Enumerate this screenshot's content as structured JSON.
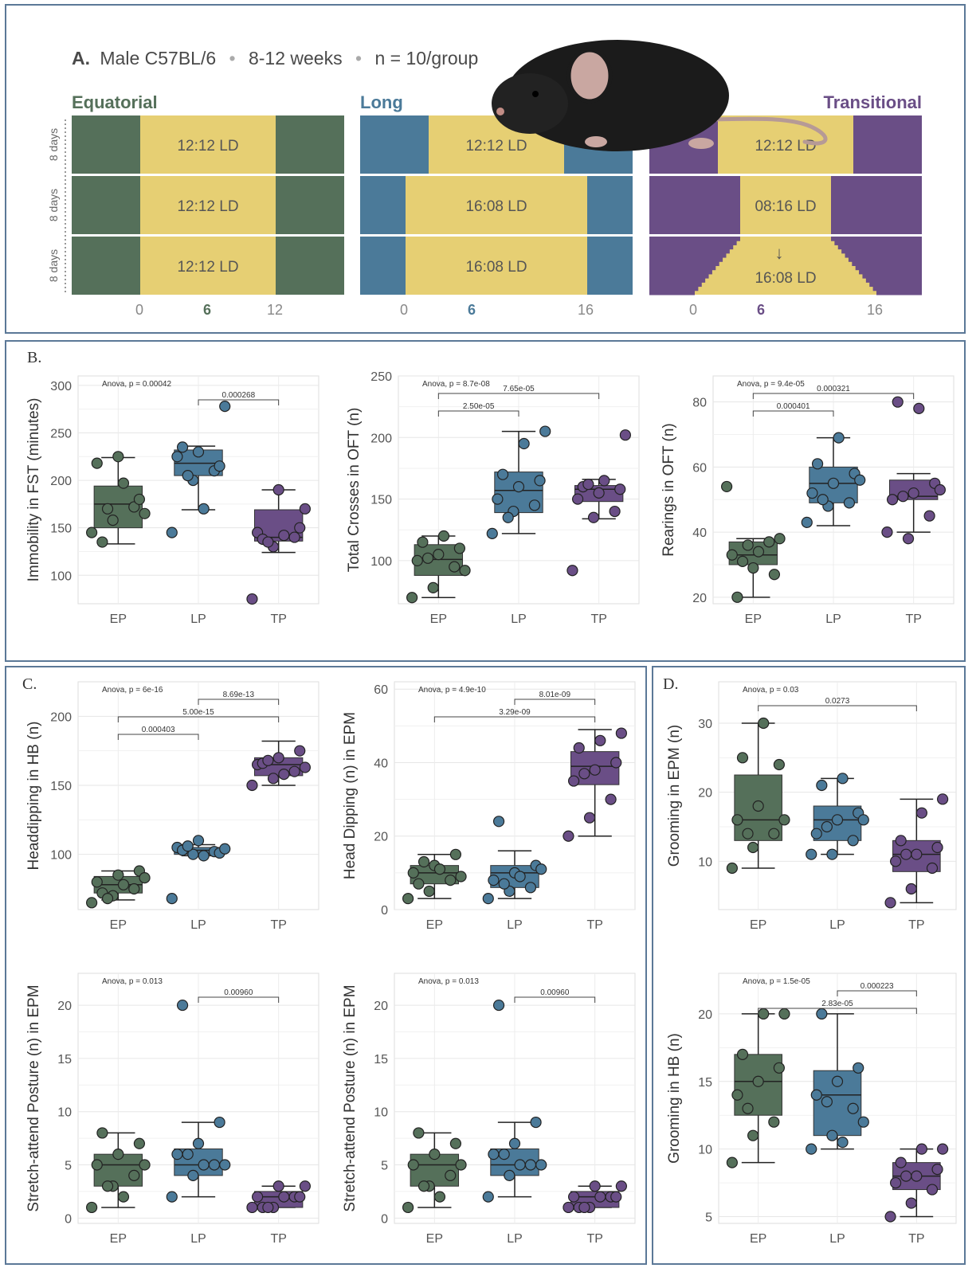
{
  "colors": {
    "EP": "#55705a",
    "LP": "#4b7a99",
    "TP": "#6a4e86",
    "light": "#e6cf73",
    "frame": "#5b7897"
  },
  "panelA": {
    "letter": "A.",
    "subtitle_parts": [
      "Male C57BL/6",
      "8-12 weeks",
      "n = 10/group"
    ],
    "bullet": "•",
    "groups": [
      {
        "key": "EP",
        "name": "Equatorial",
        "rows": [
          "12:12 LD",
          "12:12 LD",
          "12:12 LD"
        ],
        "axis": [
          "0",
          "6",
          "12"
        ]
      },
      {
        "key": "LP",
        "name": "Long",
        "rows": [
          "12:12 LD",
          "16:08 LD",
          "16:08 LD"
        ],
        "axis": [
          "0",
          "6",
          "16"
        ]
      },
      {
        "key": "TP",
        "name": "Transitional",
        "rows": [
          "12:12 LD",
          "08:16 LD",
          "16:08 LD"
        ],
        "axis": [
          "0",
          "6",
          "16"
        ],
        "arrow": "↓"
      }
    ],
    "row_label": "8 days",
    "mouse_icon": "mouse-icon"
  },
  "panelB_letter": "B.",
  "panelC_letter": "C.",
  "panelD_letter": "D.",
  "chart_data": [
    {
      "id": "fst",
      "type": "box",
      "ylabel": "Immobility in FST (minutes)",
      "ylim": [
        70,
        310
      ],
      "yticks": [
        100,
        150,
        200,
        250,
        300
      ],
      "categories": [
        "EP",
        "LP",
        "TP"
      ],
      "boxes": [
        {
          "lw": 133,
          "q1": 150,
          "med": 175,
          "q3": 194,
          "uw": 224
        },
        {
          "lw": 169,
          "q1": 205,
          "med": 218,
          "q3": 232,
          "uw": 236
        },
        {
          "lw": 124,
          "q1": 136,
          "med": 140,
          "q3": 169,
          "uw": 190
        }
      ],
      "points": [
        [
          145,
          158,
          172,
          218,
          225,
          180,
          135,
          197,
          165,
          170
        ],
        [
          145,
          200,
          210,
          225,
          230,
          215,
          235,
          170,
          278,
          205
        ],
        [
          75,
          130,
          140,
          145,
          190,
          150,
          138,
          142,
          170,
          135
        ]
      ],
      "anova": "Anova, p = 0.00042",
      "brackets": [
        {
          "from": 1,
          "to": 2,
          "label": "0.000268"
        }
      ]
    },
    {
      "id": "oft_cross",
      "type": "box",
      "ylabel": "Total Crosses in OFT (n)",
      "ylim": [
        65,
        250
      ],
      "yticks": [
        100,
        150,
        200,
        250
      ],
      "categories": [
        "EP",
        "LP",
        "TP"
      ],
      "boxes": [
        {
          "lw": 70,
          "q1": 88,
          "med": 101,
          "q3": 113,
          "uw": 120
        },
        {
          "lw": 122,
          "q1": 139,
          "med": 157,
          "q3": 172,
          "uw": 205
        },
        {
          "lw": 134,
          "q1": 148,
          "med": 158,
          "q3": 161,
          "uw": 166
        }
      ],
      "points": [
        [
          70,
          78,
          95,
          100,
          105,
          110,
          115,
          120,
          92,
          102
        ],
        [
          122,
          140,
          145,
          150,
          160,
          165,
          170,
          195,
          205,
          135
        ],
        [
          92,
          135,
          140,
          150,
          155,
          158,
          160,
          165,
          202,
          162
        ]
      ],
      "anova": "Anova, p = 8.7e-08",
      "brackets": [
        {
          "from": 0,
          "to": 1,
          "label": "2.50e-05"
        },
        {
          "from": 0,
          "to": 2,
          "label": "7.65e-05"
        }
      ]
    },
    {
      "id": "oft_rear",
      "type": "box",
      "ylabel": "Rearings in OFT (n)",
      "ylim": [
        18,
        88
      ],
      "yticks": [
        20,
        40,
        60,
        80
      ],
      "categories": [
        "EP",
        "LP",
        "TP"
      ],
      "boxes": [
        {
          "lw": 20,
          "q1": 30,
          "med": 33,
          "q3": 37,
          "uw": 38
        },
        {
          "lw": 42,
          "q1": 49,
          "med": 55,
          "q3": 60,
          "uw": 69
        },
        {
          "lw": 40,
          "q1": 50,
          "med": 51,
          "q3": 56,
          "uw": 58
        }
      ],
      "points": [
        [
          54,
          36,
          37,
          33,
          29,
          27,
          20,
          34,
          38,
          31
        ],
        [
          43,
          48,
          49,
          52,
          55,
          58,
          61,
          69,
          56,
          50
        ],
        [
          40,
          38,
          45,
          50,
          52,
          55,
          80,
          78,
          53,
          51
        ]
      ],
      "anova": "Anova, p = 9.4e-05",
      "brackets": [
        {
          "from": 0,
          "to": 1,
          "label": "0.000401"
        },
        {
          "from": 0,
          "to": 2,
          "label": "0.000321"
        }
      ]
    },
    {
      "id": "hb_head",
      "type": "box",
      "ylabel": "Headdipping in HB (n)",
      "ylim": [
        60,
        225
      ],
      "yticks": [
        100,
        150,
        200
      ],
      "categories": [
        "EP",
        "LP",
        "TP"
      ],
      "boxes": [
        {
          "lw": 67,
          "q1": 72,
          "med": 78,
          "q3": 84,
          "uw": 88
        },
        {
          "lw": 99,
          "q1": 100,
          "med": 103,
          "q3": 105,
          "uw": 107
        },
        {
          "lw": 150,
          "q1": 157,
          "med": 165,
          "q3": 170,
          "uw": 182
        }
      ],
      "points": [
        [
          65,
          70,
          75,
          80,
          85,
          88,
          72,
          78,
          83,
          68
        ],
        [
          68,
          100,
          102,
          105,
          110,
          101,
          103,
          99,
          104,
          106
        ],
        [
          150,
          155,
          160,
          165,
          170,
          175,
          166,
          158,
          163,
          168
        ]
      ],
      "anova": "Anova, p = 6e-16",
      "brackets": [
        {
          "from": 0,
          "to": 1,
          "label": "0.000403"
        },
        {
          "from": 0,
          "to": 2,
          "label": "5.00e-15"
        },
        {
          "from": 1,
          "to": 2,
          "label": "8.69e-13"
        }
      ]
    },
    {
      "id": "epm_head",
      "type": "box",
      "ylabel": "Head Dipping (n) in EPM",
      "ylim": [
        0,
        62
      ],
      "yticks": [
        0,
        20,
        40,
        60
      ],
      "categories": [
        "EP",
        "LP",
        "TP"
      ],
      "boxes": [
        {
          "lw": 3,
          "q1": 7,
          "med": 10,
          "q3": 12,
          "uw": 15
        },
        {
          "lw": 3,
          "q1": 6,
          "med": 10,
          "q3": 12,
          "uw": 16
        },
        {
          "lw": 20,
          "q1": 34,
          "med": 39,
          "q3": 43,
          "uw": 49
        }
      ],
      "points": [
        [
          3,
          5,
          8,
          10,
          12,
          15,
          7,
          11,
          9,
          13
        ],
        [
          3,
          5,
          6,
          8,
          10,
          12,
          24,
          9,
          11,
          7
        ],
        [
          20,
          25,
          30,
          35,
          38,
          40,
          44,
          46,
          48,
          37
        ]
      ],
      "anova": "Anova, p = 4.9e-10",
      "brackets": [
        {
          "from": 0,
          "to": 2,
          "label": "3.29e-09"
        },
        {
          "from": 1,
          "to": 2,
          "label": "8.01e-09"
        }
      ]
    },
    {
      "id": "sap1",
      "type": "box",
      "ylabel": "Stretch-attend Posture (n) in EPM",
      "ylim": [
        -0.5,
        23
      ],
      "yticks": [
        0,
        5,
        10,
        15,
        20
      ],
      "categories": [
        "EP",
        "LP",
        "TP"
      ],
      "boxes": [
        {
          "lw": 1,
          "q1": 3,
          "med": 5,
          "q3": 6,
          "uw": 8
        },
        {
          "lw": 2,
          "q1": 4,
          "med": 5,
          "q3": 6.5,
          "uw": 9
        },
        {
          "lw": 1,
          "q1": 1,
          "med": 2,
          "q3": 2.5,
          "uw": 3
        }
      ],
      "points": [
        [
          1,
          3,
          4,
          5,
          6,
          7,
          8,
          2,
          5,
          3
        ],
        [
          2,
          4,
          5,
          6,
          7,
          9,
          20,
          5,
          5,
          6
        ],
        [
          1,
          1,
          2,
          2,
          3,
          2,
          1,
          2,
          3,
          1
        ]
      ],
      "anova": "Anova, p = 0.013",
      "brackets": [
        {
          "from": 1,
          "to": 2,
          "label": "0.00960"
        }
      ]
    },
    {
      "id": "sap2",
      "type": "box",
      "ylabel": "Stretch-attend Posture (n) in EPM",
      "ylim": [
        -0.5,
        23
      ],
      "yticks": [
        0,
        5,
        10,
        15,
        20
      ],
      "categories": [
        "EP",
        "LP",
        "TP"
      ],
      "boxes": [
        {
          "lw": 1,
          "q1": 3,
          "med": 5,
          "q3": 6,
          "uw": 8
        },
        {
          "lw": 2,
          "q1": 4,
          "med": 5,
          "q3": 6.5,
          "uw": 9
        },
        {
          "lw": 1,
          "q1": 1,
          "med": 2,
          "q3": 2.5,
          "uw": 3
        }
      ],
      "points": [
        [
          1,
          3,
          4,
          5,
          6,
          7,
          8,
          2,
          5,
          3
        ],
        [
          2,
          4,
          5,
          6,
          7,
          9,
          20,
          5,
          5,
          6
        ],
        [
          1,
          1,
          2,
          2,
          3,
          2,
          1,
          2,
          3,
          1
        ]
      ],
      "anova": "Anova, p = 0.013",
      "brackets": [
        {
          "from": 1,
          "to": 2,
          "label": "0.00960"
        }
      ]
    },
    {
      "id": "epm_groom",
      "type": "box",
      "ylabel": "Grooming in EPM (n)",
      "ylim": [
        3,
        36
      ],
      "yticks": [
        10,
        20,
        30
      ],
      "categories": [
        "EP",
        "LP",
        "TP"
      ],
      "boxes": [
        {
          "lw": 9,
          "q1": 13,
          "med": 16,
          "q3": 22.5,
          "uw": 30
        },
        {
          "lw": 11,
          "q1": 13,
          "med": 16,
          "q3": 18,
          "uw": 22
        },
        {
          "lw": 4,
          "q1": 8.5,
          "med": 11,
          "q3": 13,
          "uw": 19
        }
      ],
      "points": [
        [
          9,
          12,
          14,
          16,
          18,
          24,
          25,
          30,
          16,
          14
        ],
        [
          11,
          11,
          13,
          14,
          16,
          17,
          21,
          22,
          16,
          15
        ],
        [
          4,
          6,
          9,
          10,
          11,
          12,
          13,
          17,
          19,
          11
        ]
      ],
      "anova": "Anova, p = 0.03",
      "brackets": [
        {
          "from": 0,
          "to": 2,
          "label": "0.0273"
        }
      ]
    },
    {
      "id": "hb_groom",
      "type": "box",
      "ylabel": "Grooming in HB (n)",
      "ylim": [
        4.5,
        23
      ],
      "yticks": [
        5,
        10,
        15,
        20
      ],
      "categories": [
        "EP",
        "LP",
        "TP"
      ],
      "boxes": [
        {
          "lw": 9,
          "q1": 12.5,
          "med": 15,
          "q3": 17,
          "uw": 20
        },
        {
          "lw": 10,
          "q1": 11,
          "med": 14,
          "q3": 15.8,
          "uw": 20
        },
        {
          "lw": 5,
          "q1": 7,
          "med": 8,
          "q3": 9,
          "uw": 10
        }
      ],
      "points": [
        [
          9,
          11,
          12,
          14,
          15,
          16,
          17,
          20,
          20,
          13
        ],
        [
          10,
          11,
          13,
          14,
          15,
          16,
          20,
          10.5,
          12,
          13.5
        ],
        [
          5,
          6,
          7,
          7.5,
          8,
          8.5,
          9,
          10,
          10,
          8
        ]
      ],
      "anova": "Anova, p = 1.5e-05",
      "brackets": [
        {
          "from": 0,
          "to": 2,
          "label": "2.83e-05"
        },
        {
          "from": 1,
          "to": 2,
          "label": "0.000223"
        }
      ]
    }
  ]
}
